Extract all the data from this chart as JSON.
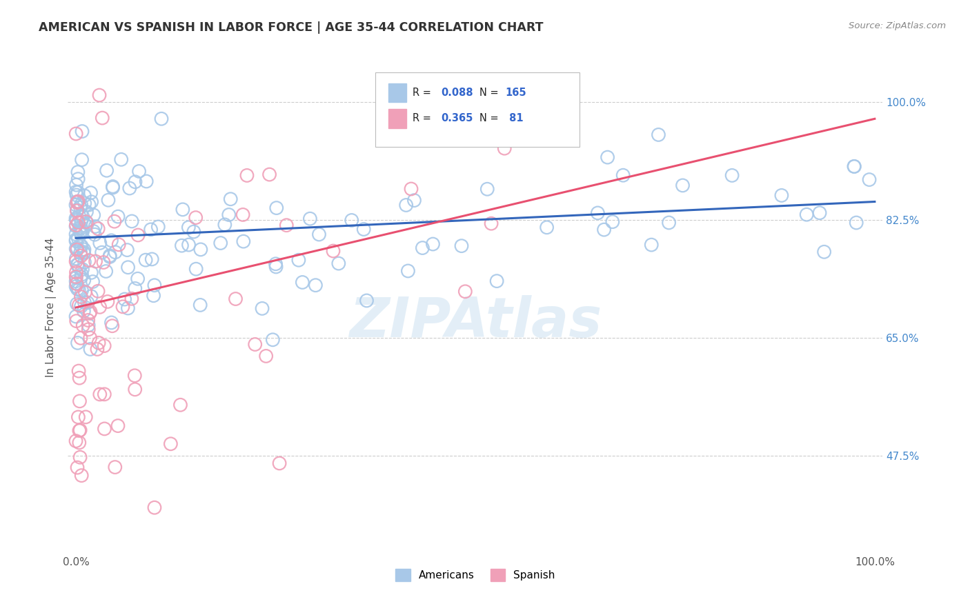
{
  "title": "AMERICAN VS SPANISH IN LABOR FORCE | AGE 35-44 CORRELATION CHART",
  "source": "Source: ZipAtlas.com",
  "ylabel": "In Labor Force | Age 35-44",
  "blue_R": 0.088,
  "blue_N": 165,
  "pink_R": 0.365,
  "pink_N": 81,
  "legend_labels": [
    "Americans",
    "Spanish"
  ],
  "blue_color": "#a8c8e8",
  "pink_color": "#f0a0b8",
  "blue_line_color": "#3366bb",
  "pink_line_color": "#e85070",
  "watermark": "ZIPAtlas",
  "background_color": "#ffffff",
  "grid_color": "#cccccc",
  "ytick_vals": [
    0.475,
    0.65,
    0.825,
    1.0
  ],
  "ytick_labels": [
    "47.5%",
    "65.0%",
    "82.5%",
    "100.0%"
  ],
  "ymin": 0.33,
  "ymax": 1.06,
  "xmin": -0.01,
  "xmax": 1.01,
  "blue_line_x0": 0.0,
  "blue_line_x1": 1.0,
  "blue_line_y0": 0.798,
  "blue_line_y1": 0.852,
  "pink_line_x0": 0.0,
  "pink_line_x1": 1.0,
  "pink_line_y0": 0.695,
  "pink_line_y1": 0.975
}
